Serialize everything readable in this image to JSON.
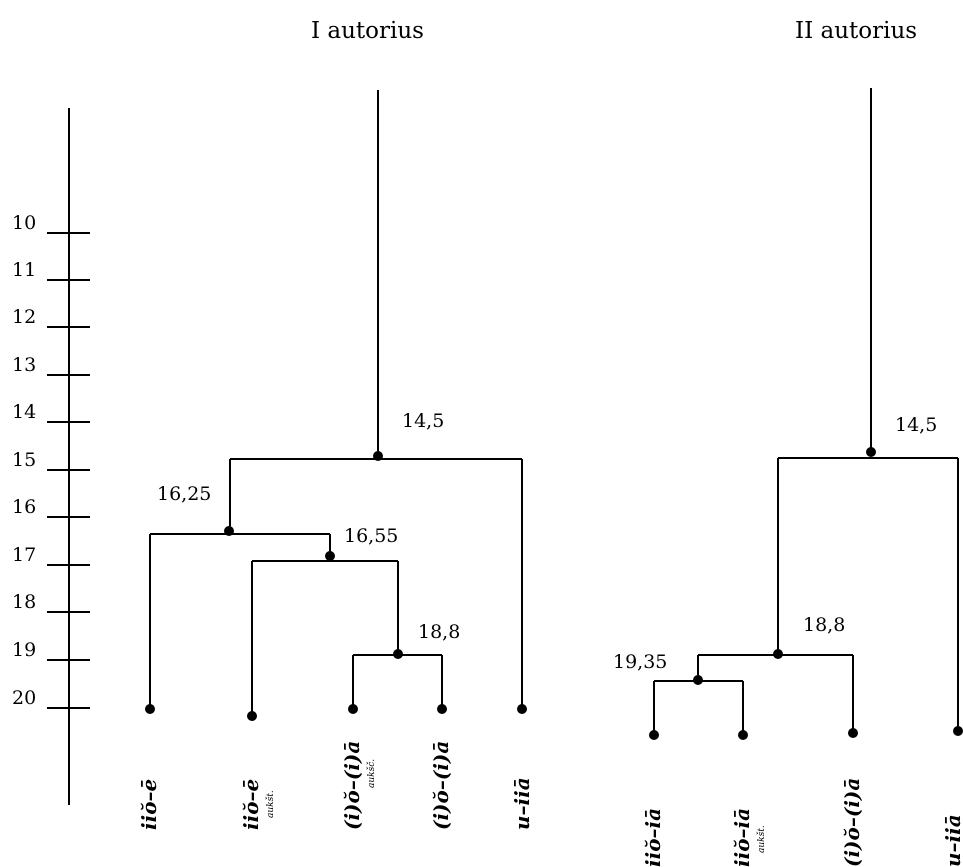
{
  "titles": {
    "left": "I autorius",
    "right": "II autorius"
  },
  "scale": {
    "ticks": [
      "10",
      "11",
      "12",
      "13",
      "14",
      "15",
      "16",
      "17",
      "18",
      "19",
      "20"
    ]
  },
  "tree_left": {
    "merges": [
      "14,5",
      "16,25",
      "16,55",
      "18,8"
    ],
    "leaves": [
      {
        "label": "iiŏ–ē",
        "sub": ""
      },
      {
        "label": "iiŏ–ē",
        "sub": "aukšt."
      },
      {
        "label": "(i)ŏ–(i)ā",
        "sub": "aukšč."
      },
      {
        "label": "(i)ŏ–(i)ā",
        "sub": ""
      },
      {
        "label": "u–iiā",
        "sub": ""
      }
    ]
  },
  "tree_right": {
    "merges": [
      "14,5",
      "18,8",
      "19,35"
    ],
    "leaves": [
      {
        "label": "iiŏ–iā",
        "sub": ""
      },
      {
        "label": "iiŏ–iā",
        "sub": "aukšt."
      },
      {
        "label": "(i)ŏ–(i)ā",
        "sub": ""
      },
      {
        "label": "u–iiā",
        "sub": ""
      }
    ]
  },
  "colors": {
    "ink": "#000000",
    "background": "#ffffff"
  }
}
